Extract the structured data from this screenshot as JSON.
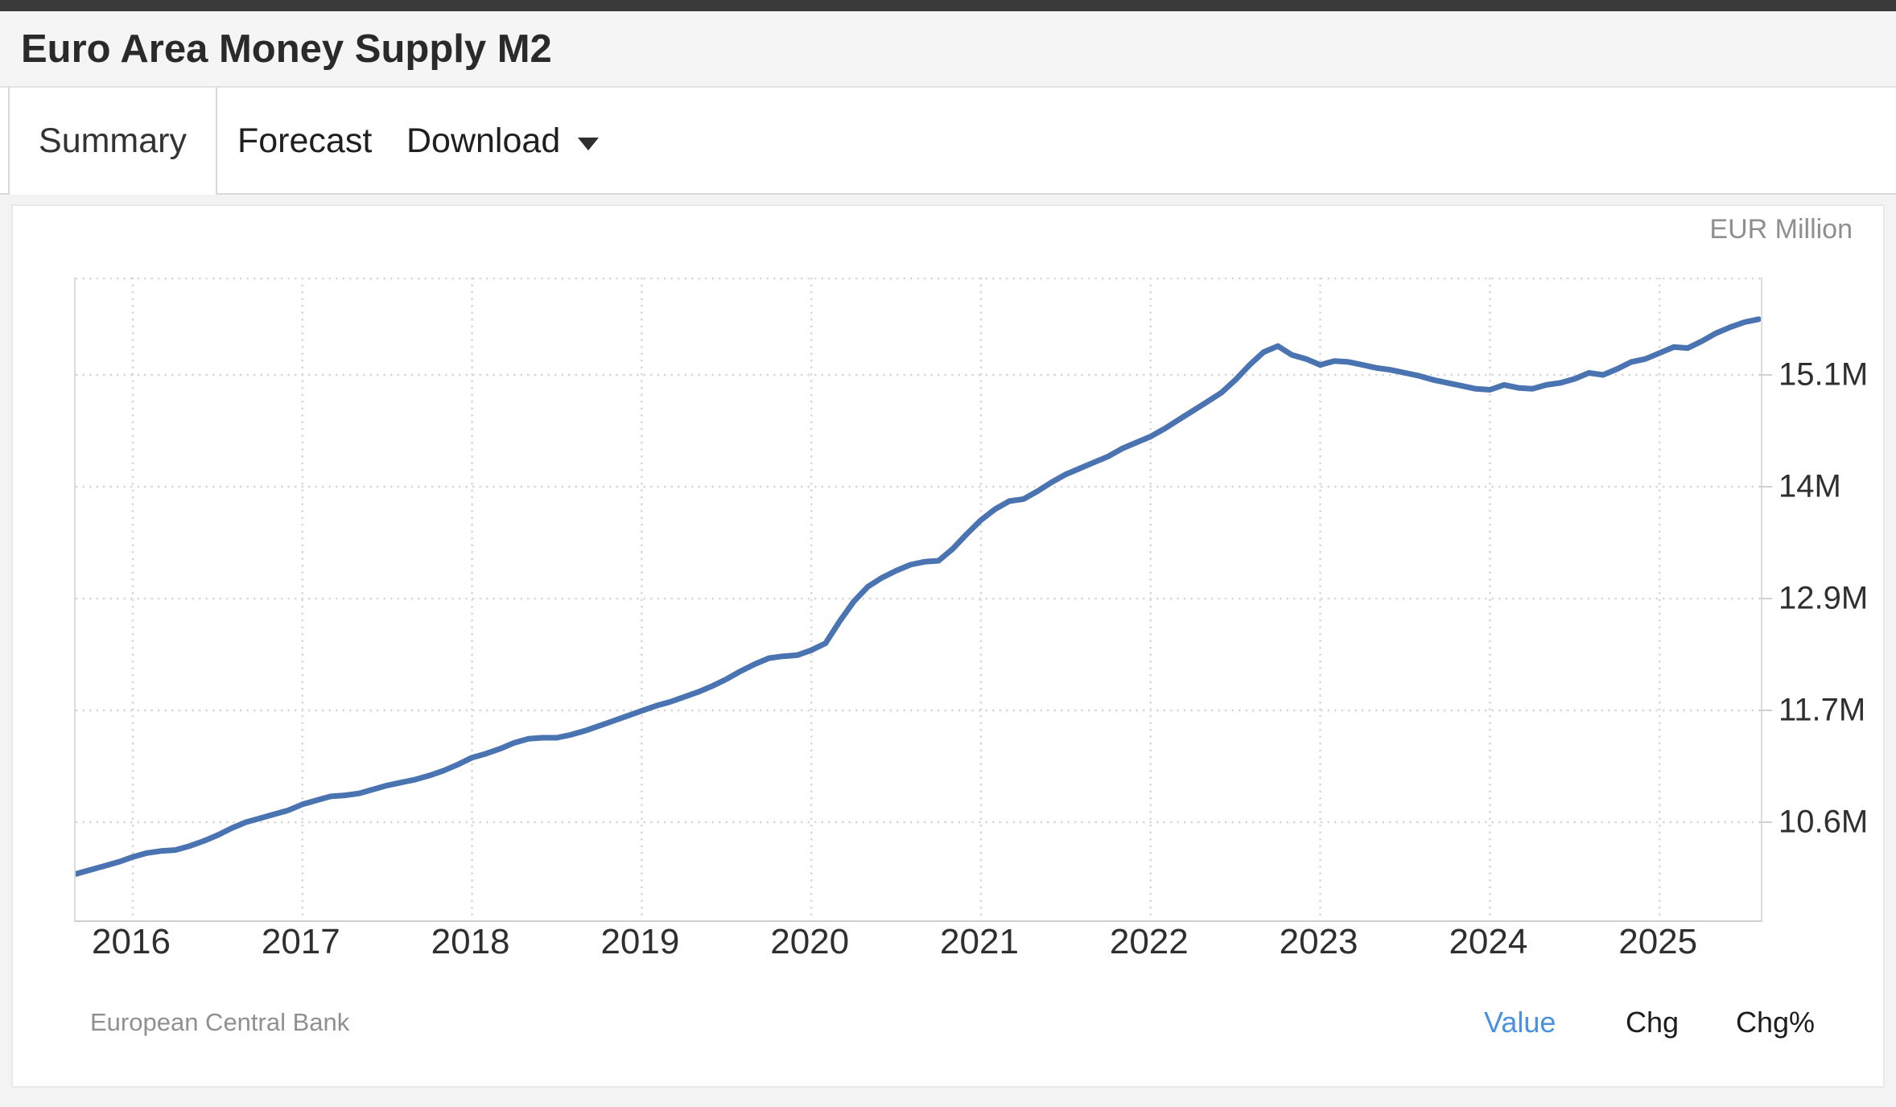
{
  "header": {
    "title": "Euro Area Money Supply M2"
  },
  "tabs": {
    "items": [
      {
        "label": "Summary",
        "active": true
      },
      {
        "label": "Forecast",
        "active": false
      },
      {
        "label": "Download",
        "active": false,
        "has_caret": true
      }
    ]
  },
  "chart_panel": {
    "unit_label": "EUR Million",
    "source": "European Central Bank",
    "footer_links": [
      {
        "label": "Value",
        "color": "#4a90e2",
        "active": true
      },
      {
        "label": "Chg",
        "color": "#1c1c1c",
        "active": false
      },
      {
        "label": "Chg%",
        "color": "#1c1c1c",
        "active": false
      }
    ]
  },
  "colors": {
    "line": "#4a73b2",
    "gridline": "#d8d8d8",
    "accent_link": "#4a90e2",
    "topbar": "#3a3a3a",
    "header_bg": "#f5f5f5"
  },
  "chart_data": {
    "type": "line",
    "title": "Euro Area Money Supply M2",
    "ylabel": "EUR Million",
    "xlabel": "",
    "legend": "none",
    "grid": "dotted",
    "source": "European Central Bank",
    "y_gridlines": [
      {
        "label": "15.1M",
        "value": 15.1
      },
      {
        "label": "14M",
        "value": 13.975
      },
      {
        "label": "12.9M",
        "value": 12.85
      },
      {
        "label": "11.7M",
        "value": 11.725
      },
      {
        "label": "10.6M",
        "value": 10.6
      }
    ],
    "x_gridlines": [
      2016,
      2017,
      2018,
      2019,
      2020,
      2021,
      2022,
      2023,
      2024,
      2025
    ],
    "x_range": [
      2015.667,
      2025.6
    ],
    "y_range_visible": [
      9.4,
      16.1
    ],
    "series": [
      {
        "name": "M2",
        "color": "#4a73b2",
        "frequency": "monthly",
        "start_year": 2015,
        "start_month": 9,
        "unit": "EUR Million (values in millions of millions)",
        "values": [
          10.08,
          10.12,
          10.16,
          10.2,
          10.25,
          10.29,
          10.31,
          10.32,
          10.36,
          10.41,
          10.47,
          10.54,
          10.6,
          10.64,
          10.68,
          10.72,
          10.78,
          10.82,
          10.86,
          10.87,
          10.89,
          10.93,
          10.97,
          11.0,
          11.03,
          11.07,
          11.12,
          11.18,
          11.25,
          11.29,
          11.34,
          11.4,
          11.44,
          11.45,
          11.45,
          11.48,
          11.52,
          11.57,
          11.62,
          11.67,
          11.72,
          11.77,
          11.81,
          11.86,
          11.91,
          11.97,
          12.04,
          12.12,
          12.19,
          12.25,
          12.27,
          12.28,
          12.33,
          12.4,
          12.62,
          12.82,
          12.97,
          13.06,
          13.13,
          13.19,
          13.22,
          13.23,
          13.35,
          13.5,
          13.64,
          13.75,
          13.83,
          13.85,
          13.93,
          14.02,
          14.1,
          14.16,
          14.22,
          14.28,
          14.36,
          14.42,
          14.48,
          14.56,
          14.65,
          14.74,
          14.83,
          14.92,
          15.05,
          15.2,
          15.33,
          15.39,
          15.3,
          15.26,
          15.2,
          15.24,
          15.23,
          15.2,
          15.17,
          15.15,
          15.12,
          15.09,
          15.05,
          15.02,
          14.99,
          14.96,
          14.95,
          15.0,
          14.97,
          14.96,
          15.0,
          15.02,
          15.06,
          15.12,
          15.1,
          15.16,
          15.23,
          15.26,
          15.32,
          15.38,
          15.37,
          15.44,
          15.52,
          15.58,
          15.63,
          15.66
        ]
      }
    ]
  }
}
